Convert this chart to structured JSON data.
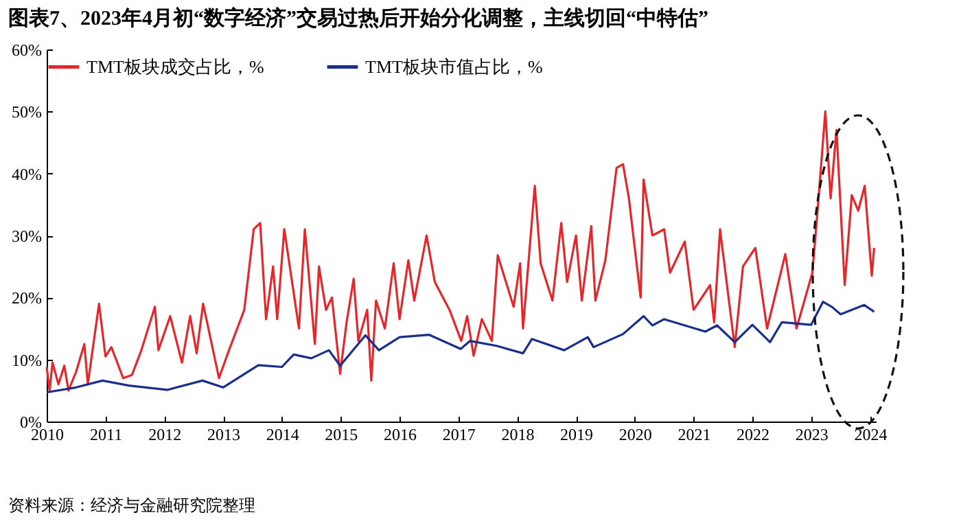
{
  "chart_data": {
    "type": "line",
    "title": "图表7、2023年4月初“数字经济”交易过热后开始分化调整，主线切回“中特估”",
    "annotations": [
      "资料来源：经济与金融研究院整理"
    ],
    "legend": "top",
    "grid": false,
    "marker": "none",
    "line_style": "solid",
    "xlim": [
      2010,
      2024.1
    ],
    "xticks": [
      2010,
      2011,
      2012,
      2013,
      2014,
      2015,
      2016,
      2017,
      2018,
      2019,
      2020,
      2021,
      2022,
      2023,
      2024
    ],
    "ylim": [
      0,
      60
    ],
    "yticks": [
      {
        "value": 0,
        "label": "0%"
      },
      {
        "value": 10,
        "label": "10%"
      },
      {
        "value": 20,
        "label": "20%"
      },
      {
        "value": 30,
        "label": "30%"
      },
      {
        "value": 40,
        "label": "40%"
      },
      {
        "value": 50,
        "label": "50%"
      },
      {
        "value": 60,
        "label": "60%"
      }
    ],
    "series": [
      {
        "name": "TMT板块成交占比，%",
        "color": "#e8262a",
        "x": [
          2010.0,
          2010.05,
          2010.1,
          2010.2,
          2010.3,
          2010.37,
          2010.5,
          2010.64,
          2010.7,
          2010.89,
          2011.0,
          2011.1,
          2011.3,
          2011.45,
          2011.61,
          2011.84,
          2011.9,
          2012.1,
          2012.3,
          2012.44,
          2012.55,
          2012.66,
          2012.93,
          2013.1,
          2013.36,
          2013.52,
          2013.63,
          2013.73,
          2013.85,
          2013.92,
          2014.04,
          2014.29,
          2014.39,
          2014.56,
          2014.63,
          2014.75,
          2014.85,
          2014.99,
          2015.1,
          2015.22,
          2015.3,
          2015.45,
          2015.52,
          2015.6,
          2015.75,
          2015.9,
          2016.0,
          2016.15,
          2016.25,
          2016.46,
          2016.6,
          2016.85,
          2017.05,
          2017.15,
          2017.26,
          2017.4,
          2017.57,
          2017.67,
          2017.94,
          2018.05,
          2018.1,
          2018.3,
          2018.4,
          2018.6,
          2018.75,
          2018.85,
          2019.0,
          2019.1,
          2019.26,
          2019.33,
          2019.5,
          2019.69,
          2019.8,
          2019.9,
          2020.1,
          2020.15,
          2020.3,
          2020.5,
          2020.6,
          2020.85,
          2021.0,
          2021.28,
          2021.35,
          2021.45,
          2021.7,
          2021.84,
          2022.05,
          2022.25,
          2022.56,
          2022.75,
          2023.02,
          2023.1,
          2023.24,
          2023.33,
          2023.43,
          2023.57,
          2023.69,
          2023.8,
          2023.91,
          2024.03,
          2024.07
        ],
        "values": [
          8.8,
          5,
          9.5,
          6,
          9,
          5,
          8,
          12.5,
          6,
          19,
          10.5,
          12,
          7,
          7.5,
          11.5,
          18.5,
          11.5,
          17,
          9.5,
          17,
          11,
          19,
          7,
          11.5,
          18,
          31,
          32,
          16.5,
          25,
          16.5,
          31,
          15,
          31,
          12.5,
          25,
          18,
          20,
          7.7,
          16,
          23,
          13,
          18,
          6.6,
          19.5,
          15,
          25.5,
          16.5,
          26,
          19.5,
          30,
          22.5,
          18,
          13,
          17,
          10.6,
          16.5,
          13,
          26.8,
          18.5,
          25.5,
          15,
          38,
          25.5,
          19.5,
          32,
          22.5,
          30,
          19.5,
          31.5,
          19.5,
          26,
          40.9,
          41.5,
          36,
          20,
          39,
          30,
          31,
          24,
          29,
          18,
          22,
          16,
          31,
          12,
          25,
          28,
          15,
          27,
          15,
          24,
          33,
          50,
          36,
          47,
          22,
          36.5,
          34,
          38,
          23.5,
          28
        ]
      },
      {
        "name": "TMT板块市值占比，%",
        "color": "#1a2f8c",
        "x": [
          2010.0,
          2010.5,
          2010.95,
          2011.4,
          2012.05,
          2012.65,
          2013.0,
          2013.6,
          2014.0,
          2014.2,
          2014.5,
          2014.8,
          2014.99,
          2015.42,
          2015.65,
          2016.0,
          2016.5,
          2017.04,
          2017.2,
          2017.65,
          2018.1,
          2018.25,
          2018.8,
          2019.2,
          2019.3,
          2019.8,
          2020.15,
          2020.3,
          2020.5,
          2021.2,
          2021.4,
          2021.7,
          2022.0,
          2022.3,
          2022.5,
          2023.0,
          2023.2,
          2023.35,
          2023.5,
          2023.9,
          2024.07
        ],
        "values": [
          4.7,
          5.5,
          6.6,
          5.8,
          5.1,
          6.6,
          5.5,
          9.1,
          8.8,
          10.8,
          10.2,
          11.5,
          9,
          13.9,
          11.5,
          13.6,
          14,
          11.7,
          13,
          12.2,
          11,
          13.3,
          11.5,
          13.6,
          12,
          14.1,
          17,
          15.5,
          16.5,
          14.5,
          15.5,
          12.8,
          15.6,
          12.8,
          16,
          15.6,
          19.3,
          18.5,
          17.3,
          18.8,
          17.7
        ]
      }
    ]
  }
}
